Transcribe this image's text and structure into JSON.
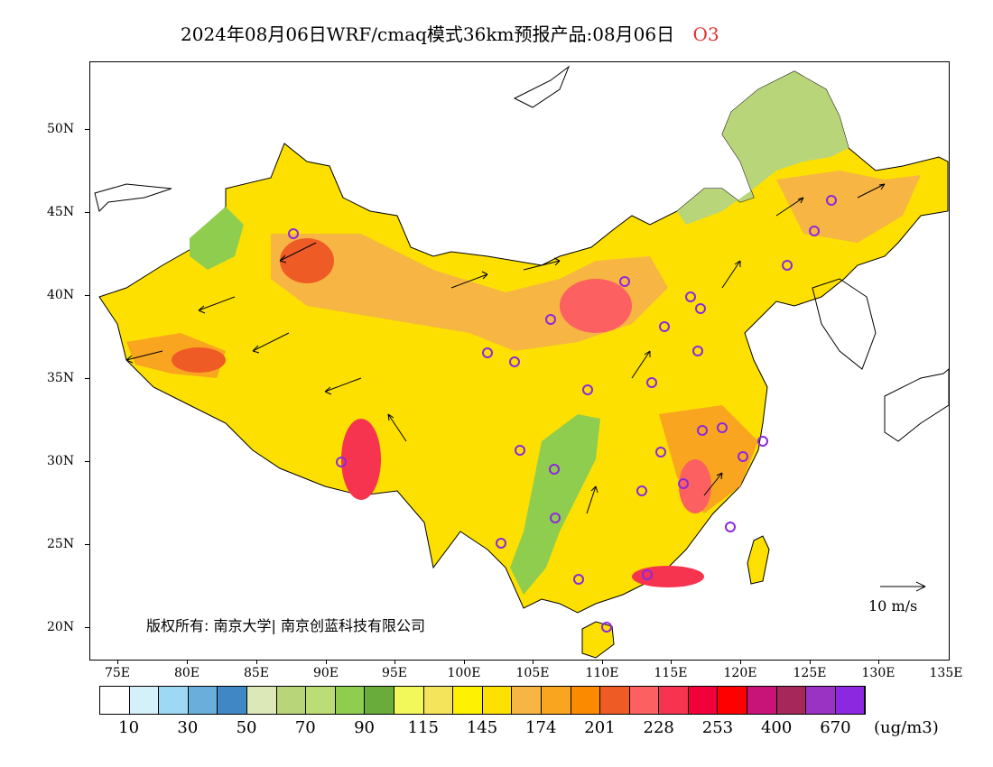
{
  "title": {
    "text": "2024年08月06日WRF/cmaq模式36km预报产品:08月06日",
    "pollutant": "O3"
  },
  "map": {
    "lat_labels": [
      "50N",
      "45N",
      "40N",
      "35N",
      "30N",
      "25N",
      "20N"
    ],
    "lon_labels": [
      "75E",
      "80E",
      "85E",
      "90E",
      "95E",
      "100E",
      "105E",
      "110E",
      "115E",
      "120E",
      "125E",
      "130E",
      "135E"
    ],
    "copyright": "版权所有: 南京大学| 南京创蓝科技有限公司",
    "wind_scale_label": "10 m/s"
  },
  "colorbar": {
    "colors": [
      "#ffffff",
      "#d4f0fb",
      "#9dd8f5",
      "#6aaedc",
      "#3f88c5",
      "#dde8b8",
      "#b9d57a",
      "#bcdc76",
      "#8fcd4f",
      "#6aac3a",
      "#f2f75a",
      "#f3e45c",
      "#fff200",
      "#fde000",
      "#f7b544",
      "#f9a520",
      "#fb8a00",
      "#ef5b25",
      "#fc6060",
      "#f73450",
      "#f1003a",
      "#fe0000",
      "#c81478",
      "#a6285a",
      "#9a32c4",
      "#8c28e0"
    ],
    "labels": [
      "10",
      "30",
      "50",
      "70",
      "90",
      "115",
      "145",
      "174",
      "201",
      "228",
      "253",
      "400",
      "670"
    ],
    "unit": "(ug/m3)"
  }
}
